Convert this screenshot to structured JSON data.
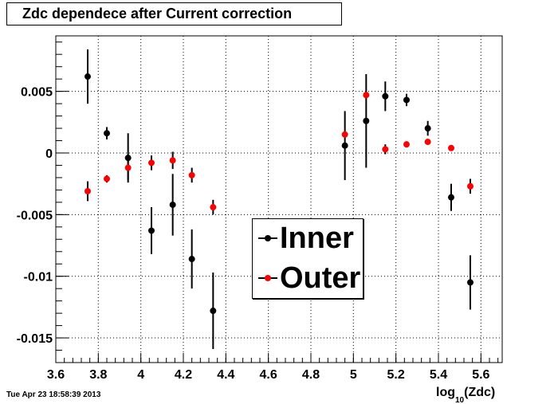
{
  "chart_data": {
    "type": "scatter",
    "title": "Zdc dependece after Current correction",
    "xlabel": "log",
    "xlabel_sub": "10",
    "xlabel_tail": "(Zdc)",
    "ylabel": "",
    "xlim": [
      3.6,
      5.7
    ],
    "ylim": [
      -0.017,
      0.0095
    ],
    "grid": true,
    "x_ticks": [
      "3.6",
      "3.8",
      "4",
      "4.2",
      "4.4",
      "4.6",
      "4.8",
      "5",
      "5.2",
      "5.4",
      "5.6"
    ],
    "y_ticks": [
      "0.005",
      "0",
      "-0.005",
      "-0.01",
      "-0.015"
    ],
    "legend_position": "center",
    "series": [
      {
        "name": "Inner",
        "color": "#000000",
        "points": [
          {
            "x": 3.75,
            "y": 0.0062,
            "err": 0.0022
          },
          {
            "x": 3.84,
            "y": 0.0016,
            "err": 0.0005
          },
          {
            "x": 3.94,
            "y": -0.0004,
            "err": 0.002
          },
          {
            "x": 4.05,
            "y": -0.0063,
            "err": 0.0019
          },
          {
            "x": 4.15,
            "y": -0.0042,
            "err": 0.0025
          },
          {
            "x": 4.24,
            "y": -0.0086,
            "err": 0.0024
          },
          {
            "x": 4.34,
            "y": -0.0128,
            "err": 0.0031
          },
          {
            "x": 4.96,
            "y": 0.0006,
            "err": 0.0028
          },
          {
            "x": 5.06,
            "y": 0.0026,
            "err": 0.0038
          },
          {
            "x": 5.15,
            "y": 0.0046,
            "err": 0.0012
          },
          {
            "x": 5.25,
            "y": 0.0043,
            "err": 0.0005
          },
          {
            "x": 5.35,
            "y": 0.002,
            "err": 0.0006
          },
          {
            "x": 5.46,
            "y": -0.0036,
            "err": 0.0011
          },
          {
            "x": 5.55,
            "y": -0.0105,
            "err": 0.0022
          }
        ]
      },
      {
        "name": "Outer",
        "color": "#ff0000",
        "points": [
          {
            "x": 3.75,
            "y": -0.0031,
            "err": 0.0008
          },
          {
            "x": 3.84,
            "y": -0.0021,
            "err": 0.0003
          },
          {
            "x": 3.94,
            "y": -0.0012,
            "err": 0.001
          },
          {
            "x": 4.05,
            "y": -0.0008,
            "err": 0.0006
          },
          {
            "x": 4.15,
            "y": -0.0006,
            "err": 0.0007
          },
          {
            "x": 4.24,
            "y": -0.0018,
            "err": 0.0006
          },
          {
            "x": 4.34,
            "y": -0.0044,
            "err": 0.0006
          },
          {
            "x": 4.96,
            "y": 0.0015,
            "err": 0.0001
          },
          {
            "x": 5.06,
            "y": 0.0047,
            "err": 0.0001
          },
          {
            "x": 5.15,
            "y": 0.0003,
            "err": 0.0004
          },
          {
            "x": 5.25,
            "y": 0.0007,
            "err": 0.0001
          },
          {
            "x": 5.35,
            "y": 0.0009,
            "err": 0.0001
          },
          {
            "x": 5.46,
            "y": 0.0004,
            "err": 0.0001
          },
          {
            "x": 5.55,
            "y": -0.0027,
            "err": 0.0006
          }
        ]
      }
    ]
  },
  "legend": {
    "inner_label": "Inner",
    "outer_label": "Outer"
  },
  "timestamp": "Tue Apr 23 18:58:39 2013"
}
